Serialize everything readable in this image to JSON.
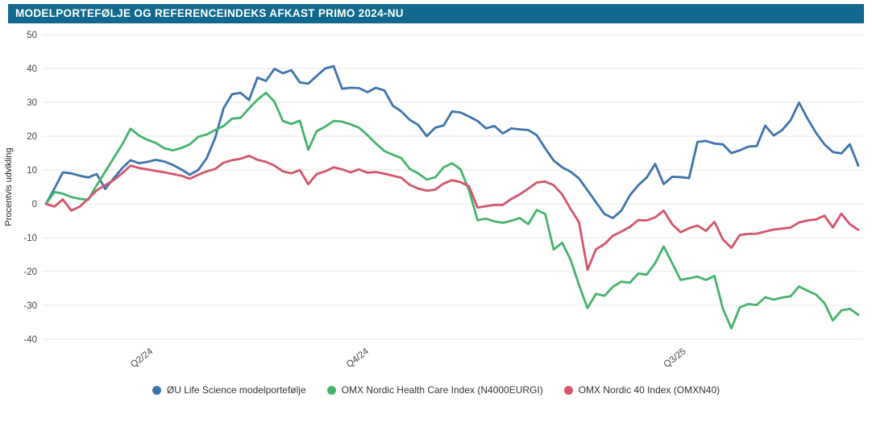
{
  "header": {
    "title": "MODELPORTEFØLJE OG REFERENCEINDEKS AFKAST PRIMO 2024-NU",
    "bg_color": "#116a8e"
  },
  "chart_data": {
    "type": "line",
    "title": "Modelportefølje og referenceindeks afkast primo 2024-nu",
    "xlabel": "",
    "ylabel": "Procentvis udvikling",
    "ylim": [
      -40,
      50
    ],
    "ytick_step": 10,
    "yticks": [
      50,
      40,
      30,
      20,
      10,
      0,
      -10,
      -20,
      -30,
      -40
    ],
    "grid": "horizontal",
    "legend_position": "bottom-center",
    "x_count": 97,
    "x_description": "weekly observations, primo January 2024 to now",
    "xticks": [
      {
        "index": 12,
        "label": "Q2/24"
      },
      {
        "index": 37.5,
        "label": "Q4/24"
      },
      {
        "index": 75,
        "label": "Q3/25"
      }
    ],
    "series": [
      {
        "name": "ØU Life Science modelportefølje",
        "color": "#3d74ad",
        "values": [
          0,
          4.5,
          9.3,
          9,
          8.3,
          7.8,
          8.8,
          4.4,
          7.5,
          10.5,
          12.9,
          12,
          12.4,
          13,
          12.5,
          11.5,
          10.2,
          8.6,
          10,
          13.5,
          19.5,
          28.3,
          32.4,
          32.8,
          30.7,
          37.3,
          36.3,
          39.9,
          38.6,
          39.5,
          35.9,
          35.5,
          37.8,
          40,
          40.7,
          34,
          34.3,
          34.2,
          33,
          34.3,
          33.5,
          29,
          27.3,
          24.8,
          23.3,
          20,
          22.5,
          23.2,
          27.3,
          27,
          25.8,
          24.5,
          22.3,
          23,
          20.8,
          22.3,
          22,
          21.8,
          20.3,
          16.4,
          12.8,
          10.8,
          9.5,
          7.5,
          4,
          0.5,
          -3,
          -4.2,
          -2,
          2.5,
          5.5,
          7.8,
          11.8,
          5.8,
          8,
          7.9,
          7.6,
          18.3,
          18.6,
          17.8,
          17.6,
          15,
          15.8,
          16.9,
          17.1,
          23.1,
          20.2,
          21.8,
          24.7,
          29.9,
          25.2,
          21,
          17.6,
          15.3,
          14.9,
          17.6,
          11.3
        ]
      },
      {
        "name": "OMX Nordic Health Care Index (N4000EURGI)",
        "color": "#45b36b",
        "values": [
          0,
          3.5,
          3,
          2,
          1.5,
          1.2,
          5.5,
          9.5,
          13.5,
          17.5,
          22.2,
          20.2,
          18.9,
          18,
          16.4,
          15.8,
          16.5,
          17.6,
          19.8,
          20.5,
          21.8,
          23,
          25.2,
          25.4,
          28.2,
          30.8,
          32.8,
          30.2,
          24.5,
          23.6,
          24.6,
          16,
          21.5,
          22.8,
          24.5,
          24.3,
          23.5,
          22.5,
          20.3,
          17.8,
          15.6,
          14.5,
          13.5,
          10.3,
          9,
          7.2,
          7.8,
          10.8,
          12,
          10.2,
          4,
          -4.8,
          -4.4,
          -5.2,
          -5.6,
          -5,
          -4.2,
          -6,
          -1.8,
          -3,
          -13.5,
          -11.5,
          -16.5,
          -24,
          -30.8,
          -26.6,
          -27.2,
          -24.5,
          -23,
          -23.3,
          -20.6,
          -20.9,
          -17.5,
          -12.6,
          -17.5,
          -22.5,
          -22,
          -21.5,
          -22.5,
          -21.3,
          -31,
          -36.8,
          -30.6,
          -29.6,
          -29.9,
          -27.6,
          -28.3,
          -27.7,
          -27.3,
          -24.4,
          -25.7,
          -26.8,
          -29.3,
          -34.5,
          -31.5,
          -31,
          -32.8
        ]
      },
      {
        "name": "OMX Nordic 40 Index (OMXN40)",
        "color": "#d4556a",
        "values": [
          0,
          -0.8,
          1.3,
          -2,
          -0.8,
          1.5,
          4,
          5.5,
          7,
          9,
          11.3,
          10.6,
          10.2,
          9.7,
          9.3,
          8.8,
          8.3,
          7.4,
          8.6,
          9.6,
          10.3,
          12.2,
          12.9,
          13.3,
          14.2,
          13,
          12.4,
          11.3,
          9.6,
          9,
          10,
          5.8,
          8.8,
          9.6,
          10.8,
          10.2,
          9.3,
          10.2,
          9.2,
          9.4,
          8.9,
          8.3,
          7.7,
          5.6,
          4.5,
          3.9,
          4.2,
          6,
          7,
          6.4,
          5.2,
          -1.1,
          -0.7,
          -0.3,
          -0.3,
          1.5,
          2.8,
          4.5,
          6.3,
          6.6,
          5.5,
          2.8,
          -1.5,
          -5.5,
          -19.5,
          -13.4,
          -11.9,
          -9.4,
          -8.2,
          -6.8,
          -4.8,
          -4.9,
          -4,
          -2,
          -6,
          -8.4,
          -7.2,
          -6.4,
          -8,
          -5.3,
          -10.5,
          -13,
          -9.2,
          -8.9,
          -8.8,
          -8.2,
          -7.6,
          -7.3,
          -7,
          -5.5,
          -4.9,
          -4.6,
          -3.5,
          -7,
          -2.9,
          -6,
          -7.7
        ]
      }
    ],
    "style": {
      "grid_color": "#e7e7e7",
      "tick_label_color": "#444444",
      "axis_title_color": "#222222",
      "line_width": 2.8
    }
  }
}
